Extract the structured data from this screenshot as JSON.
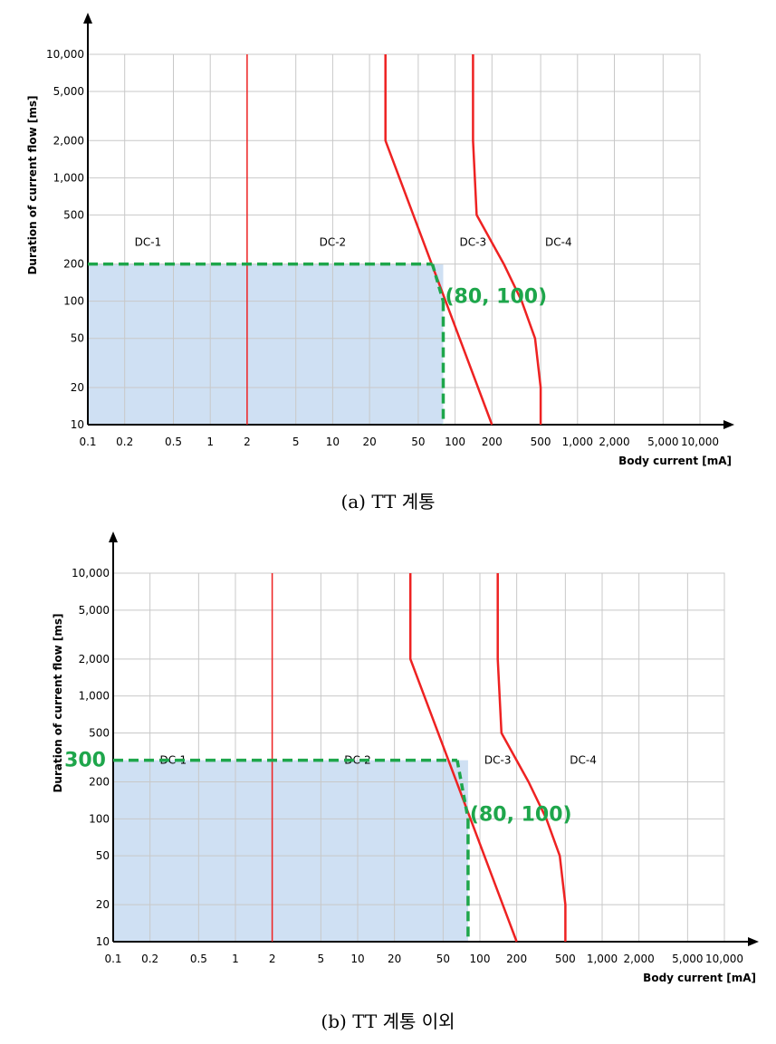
{
  "chart_data": [
    {
      "type": "line",
      "scale": "log-log",
      "caption": "(a) TT 계통",
      "xlabel": "Body current  [mA]",
      "ylabel": "Duration of current flow  [ms]",
      "xlim": [
        0.1,
        10000
      ],
      "ylim": [
        10,
        10000
      ],
      "grid": true,
      "x_ticks": [
        0.1,
        0.2,
        0.5,
        1,
        2,
        5,
        10,
        20,
        50,
        100,
        200,
        500,
        1000,
        2000,
        5000,
        10000
      ],
      "x_tick_labels": [
        "0.1",
        "0.2",
        "0.5",
        "1",
        "2",
        "5",
        "10",
        "20",
        "50",
        "100",
        "200",
        "500",
        "1,000",
        "2,000",
        "5,000",
        "10,000"
      ],
      "y_ticks": [
        10,
        20,
        50,
        100,
        200,
        500,
        1000,
        2000,
        5000,
        10000
      ],
      "y_tick_labels": [
        "10",
        "20",
        "50",
        "100",
        "200",
        "500",
        "1,000",
        "2,000",
        "5,000",
        "10,000"
      ],
      "zones": [
        {
          "label": "DC-1",
          "x": 0.31,
          "y": 300
        },
        {
          "label": "DC-2",
          "x": 10,
          "y": 300
        },
        {
          "label": "DC-3",
          "x": 140,
          "y": 300
        },
        {
          "label": "DC-4",
          "x": 700,
          "y": 300
        }
      ],
      "boundary_curves": [
        {
          "name": "a",
          "points": [
            [
              2,
              10
            ],
            [
              2,
              10000
            ]
          ]
        },
        {
          "name": "b",
          "points": [
            [
              27,
              10000
            ],
            [
              27,
              2000
            ],
            [
              200,
              10
            ]
          ]
        },
        {
          "name": "c",
          "points": [
            [
              140,
              10000
            ],
            [
              140,
              2000
            ],
            [
              150,
              500
            ],
            [
              250,
              200
            ],
            [
              350,
              100
            ],
            [
              450,
              50
            ],
            [
              500,
              20
            ],
            [
              500,
              10
            ]
          ]
        }
      ],
      "shaded_region": {
        "x_max": 80,
        "y_max": 200
      },
      "highlight_point": {
        "x": 80,
        "y": 100,
        "label": "(80, 100)"
      },
      "y_marker": null,
      "colors": {
        "boundary": "#ee2222",
        "dashed": "#1ea64b",
        "shade": "#cfe0f3",
        "grid": "#c8c8c8"
      }
    },
    {
      "type": "line",
      "scale": "log-log",
      "caption": "(b) TT 계통 이외",
      "xlabel": "Body current  [mA]",
      "ylabel": "Duration of current flow  [ms]",
      "xlim": [
        0.1,
        10000
      ],
      "ylim": [
        10,
        10000
      ],
      "grid": true,
      "x_ticks": [
        0.1,
        0.2,
        0.5,
        1,
        2,
        5,
        10,
        20,
        50,
        100,
        200,
        500,
        1000,
        2000,
        5000,
        10000
      ],
      "x_tick_labels": [
        "0.1",
        "0.2",
        "0.5",
        "1",
        "2",
        "5",
        "10",
        "20",
        "50",
        "100",
        "200",
        "500",
        "1,000",
        "2,000",
        "5,000",
        "10,000"
      ],
      "y_ticks": [
        10,
        20,
        50,
        100,
        200,
        500,
        1000,
        2000,
        5000,
        10000
      ],
      "y_tick_labels": [
        "10",
        "20",
        "50",
        "100",
        "200",
        "500",
        "1,000",
        "2,000",
        "5,000",
        "10,000"
      ],
      "zones": [
        {
          "label": "DC-1",
          "x": 0.31,
          "y": 300
        },
        {
          "label": "DC-2",
          "x": 10,
          "y": 300
        },
        {
          "label": "DC-3",
          "x": 140,
          "y": 300
        },
        {
          "label": "DC-4",
          "x": 700,
          "y": 300
        }
      ],
      "boundary_curves": [
        {
          "name": "a",
          "points": [
            [
              2,
              10
            ],
            [
              2,
              10000
            ]
          ]
        },
        {
          "name": "b",
          "points": [
            [
              27,
              10000
            ],
            [
              27,
              2000
            ],
            [
              200,
              10
            ]
          ]
        },
        {
          "name": "c",
          "points": [
            [
              140,
              10000
            ],
            [
              140,
              2000
            ],
            [
              150,
              500
            ],
            [
              250,
              200
            ],
            [
              350,
              100
            ],
            [
              450,
              50
            ],
            [
              500,
              20
            ],
            [
              500,
              10
            ]
          ]
        }
      ],
      "shaded_region": {
        "x_max": 80,
        "y_max": 300
      },
      "highlight_point": {
        "x": 80,
        "y": 100,
        "label": "(80, 100)"
      },
      "y_marker": {
        "value": 300,
        "label": "300"
      },
      "colors": {
        "boundary": "#ee2222",
        "dashed": "#1ea64b",
        "shade": "#cfe0f3",
        "grid": "#c8c8c8"
      }
    }
  ]
}
